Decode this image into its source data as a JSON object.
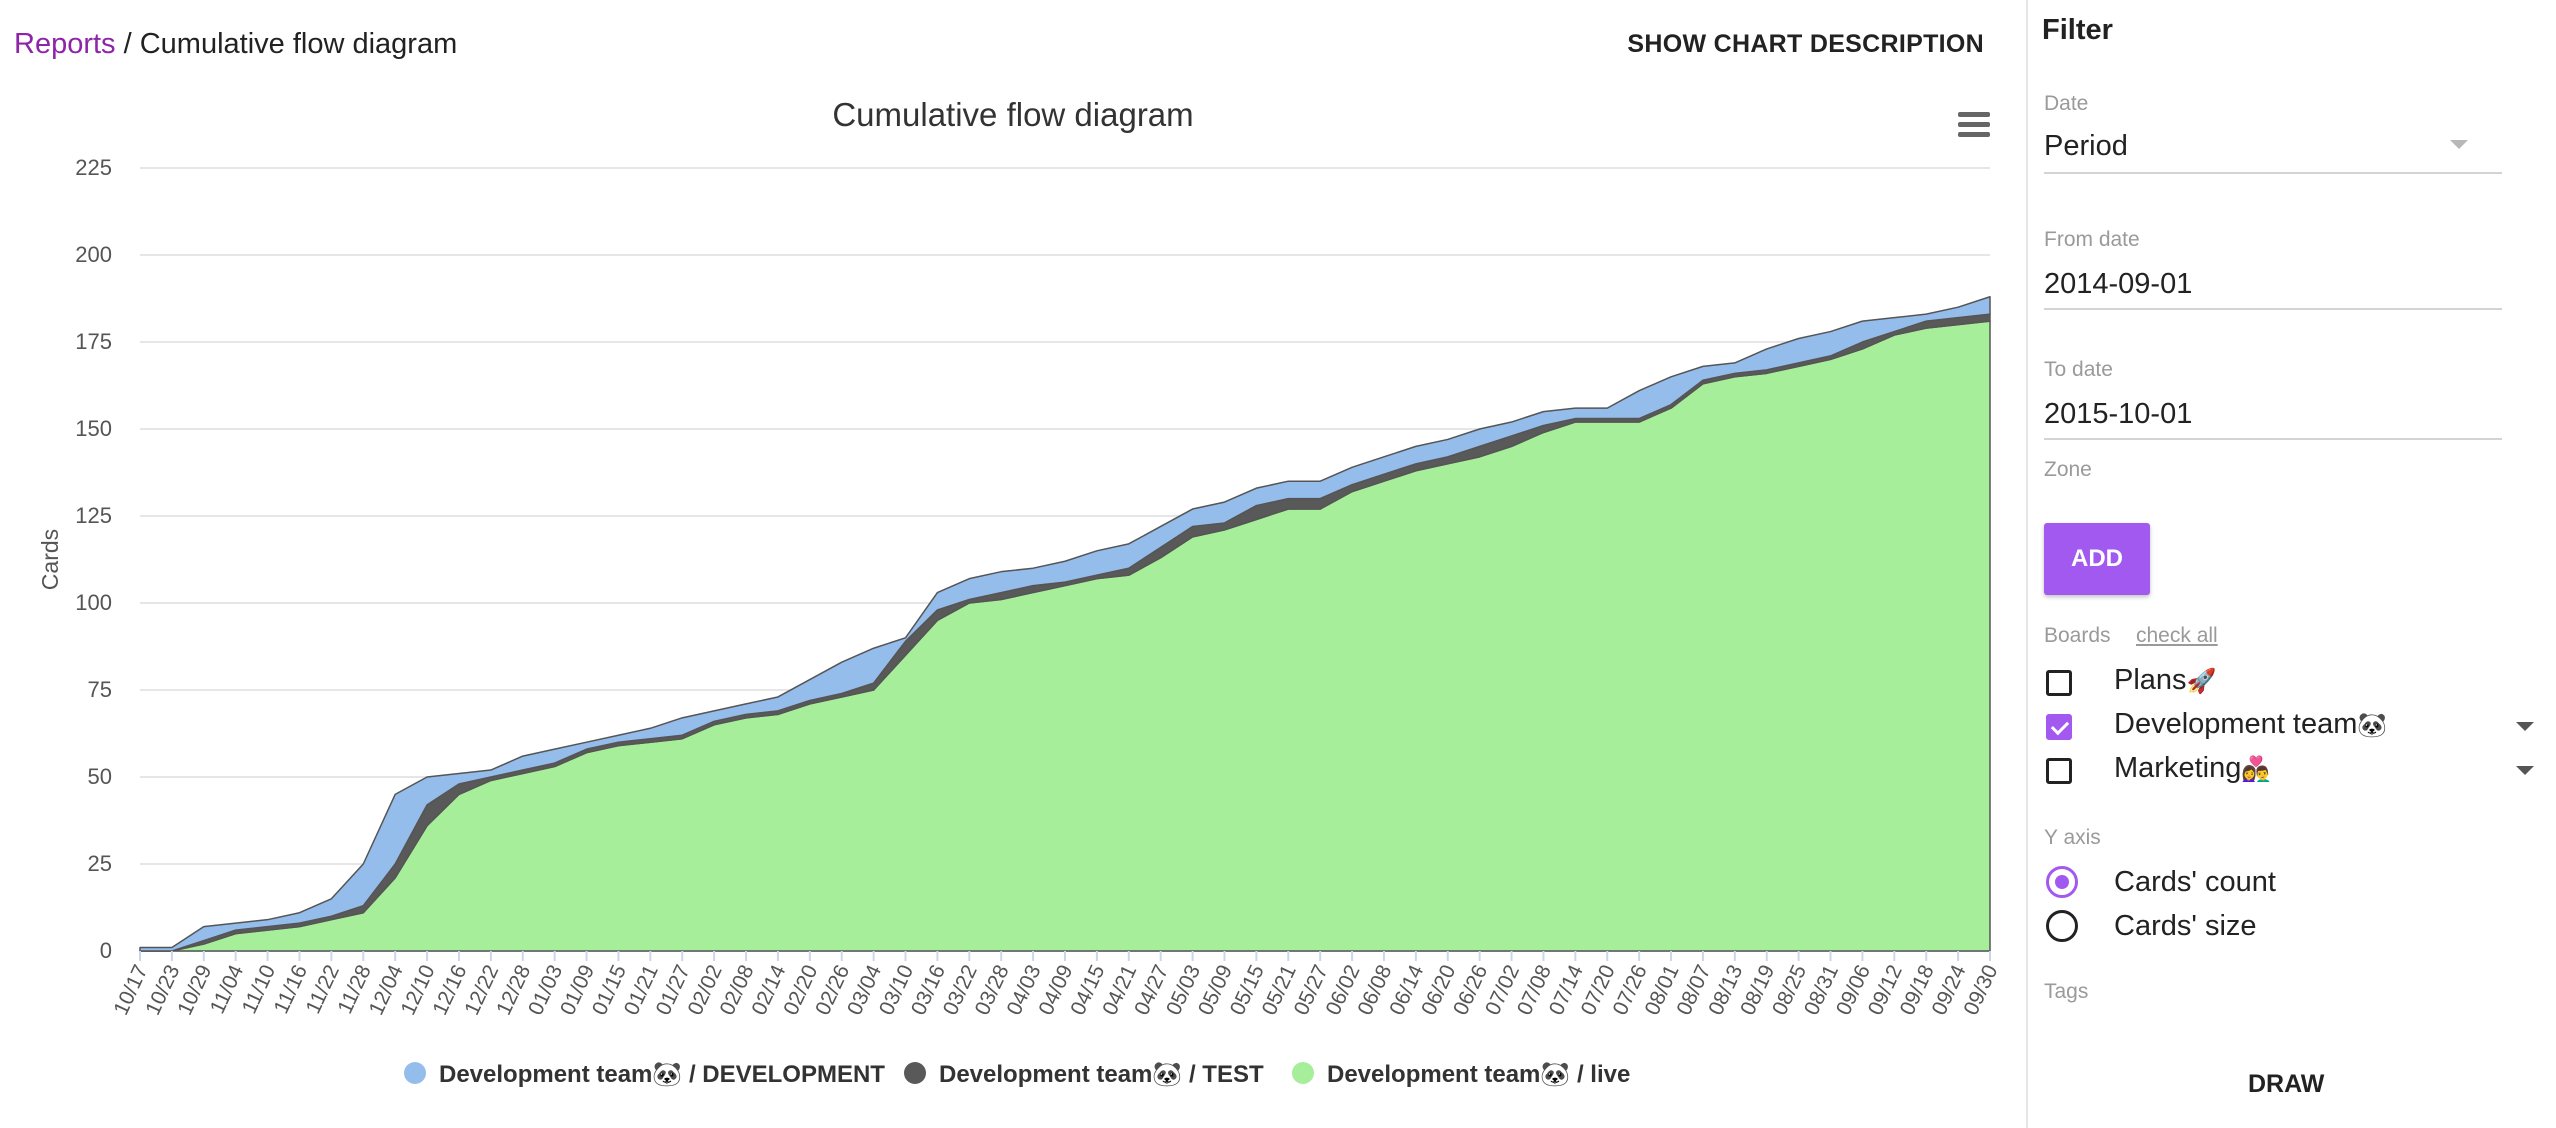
{
  "breadcrumb": {
    "link": "Reports",
    "separator": " / ",
    "current": "Cumulative flow diagram"
  },
  "header": {
    "show_description": "SHOW CHART DESCRIPTION"
  },
  "chart_menu": {
    "icon": "hamburger-menu-icon"
  },
  "chart_data": {
    "type": "area",
    "stacked": true,
    "title": "Cumulative flow diagram",
    "xlabel": "",
    "ylabel": "Cards",
    "ylim": [
      0,
      225
    ],
    "yticks": [
      0,
      25,
      50,
      75,
      100,
      125,
      150,
      175,
      200,
      225
    ],
    "x": [
      "10/17",
      "10/23",
      "10/29",
      "11/04",
      "11/10",
      "11/16",
      "11/22",
      "11/28",
      "12/04",
      "12/10",
      "12/16",
      "12/22",
      "12/28",
      "01/03",
      "01/09",
      "01/15",
      "01/21",
      "01/27",
      "02/02",
      "02/08",
      "02/14",
      "02/20",
      "02/26",
      "03/04",
      "03/10",
      "03/16",
      "03/22",
      "03/28",
      "04/03",
      "04/09",
      "04/15",
      "04/21",
      "04/27",
      "05/03",
      "05/09",
      "05/15",
      "05/21",
      "05/27",
      "06/02",
      "06/08",
      "06/14",
      "06/20",
      "06/26",
      "07/02",
      "07/08",
      "07/14",
      "07/20",
      "07/26",
      "08/01",
      "08/07",
      "08/13",
      "08/19",
      "08/25",
      "08/31",
      "09/06",
      "09/12",
      "09/18",
      "09/24",
      "09/30"
    ],
    "series": [
      {
        "name": "Development team🐼 / live",
        "color": "#a6ee99",
        "values": [
          0,
          0,
          2,
          5,
          6,
          7,
          9,
          11,
          21,
          36,
          45,
          49,
          51,
          53,
          57,
          59,
          60,
          61,
          65,
          67,
          68,
          71,
          73,
          75,
          85,
          95,
          100,
          101,
          103,
          105,
          107,
          108,
          113,
          119,
          121,
          124,
          127,
          127,
          132,
          135,
          138,
          140,
          142,
          145,
          149,
          152,
          152,
          152,
          156,
          163,
          165,
          166,
          168,
          170,
          173,
          177,
          179,
          180,
          181
        ]
      },
      {
        "name": "Development team🐼 / TEST",
        "color": "#595959",
        "values": [
          0,
          0,
          1,
          1,
          1,
          1,
          1,
          2,
          4,
          6,
          3,
          1,
          1,
          1,
          1,
          1,
          1,
          1,
          1,
          1,
          1,
          1,
          1,
          2,
          4,
          3,
          1,
          2,
          2,
          1,
          1,
          2,
          3,
          3,
          2,
          4,
          3,
          3,
          2,
          2,
          2,
          2,
          3,
          3,
          2,
          1,
          1,
          1,
          1,
          1,
          1,
          1,
          1,
          1,
          2,
          1,
          2,
          2,
          2
        ]
      },
      {
        "name": "Development team🐼 / DEVELOPMENT",
        "color": "#95bdec",
        "values": [
          1,
          1,
          4,
          2,
          2,
          3,
          5,
          12,
          20,
          8,
          3,
          2,
          4,
          4,
          2,
          2,
          3,
          5,
          3,
          3,
          4,
          6,
          9,
          10,
          1,
          5,
          6,
          6,
          5,
          6,
          7,
          7,
          6,
          5,
          6,
          5,
          5,
          5,
          5,
          5,
          5,
          5,
          5,
          4,
          4,
          3,
          3,
          8,
          8,
          4,
          3,
          6,
          7,
          7,
          6,
          4,
          2,
          3,
          5
        ]
      }
    ],
    "legend": {
      "position": "bottom",
      "items": [
        "Development team🐼 / DEVELOPMENT",
        "Development team🐼 / TEST",
        "Development team🐼 / live"
      ]
    }
  },
  "filter": {
    "title": "Filter",
    "date_label": "Date",
    "date_value": "Period",
    "from_label": "From date",
    "from_value": "2014-09-01",
    "to_label": "To date",
    "to_value": "2015-10-01",
    "zone_label": "Zone",
    "add_label": "ADD",
    "boards_label": "Boards",
    "check_all": "check all",
    "boards": [
      {
        "name": "Plans",
        "emoji": "🚀",
        "checked": false
      },
      {
        "name": "Development team",
        "emoji": "🐼",
        "checked": true
      },
      {
        "name": "Marketing",
        "emoji": "👩‍❤️‍👨",
        "checked": false
      }
    ],
    "y_axis_label": "Y axis",
    "y_options": [
      {
        "label": "Cards' count",
        "selected": true
      },
      {
        "label": "Cards' size",
        "selected": false
      }
    ],
    "tags_label": "Tags",
    "draw_label": "DRAW"
  }
}
